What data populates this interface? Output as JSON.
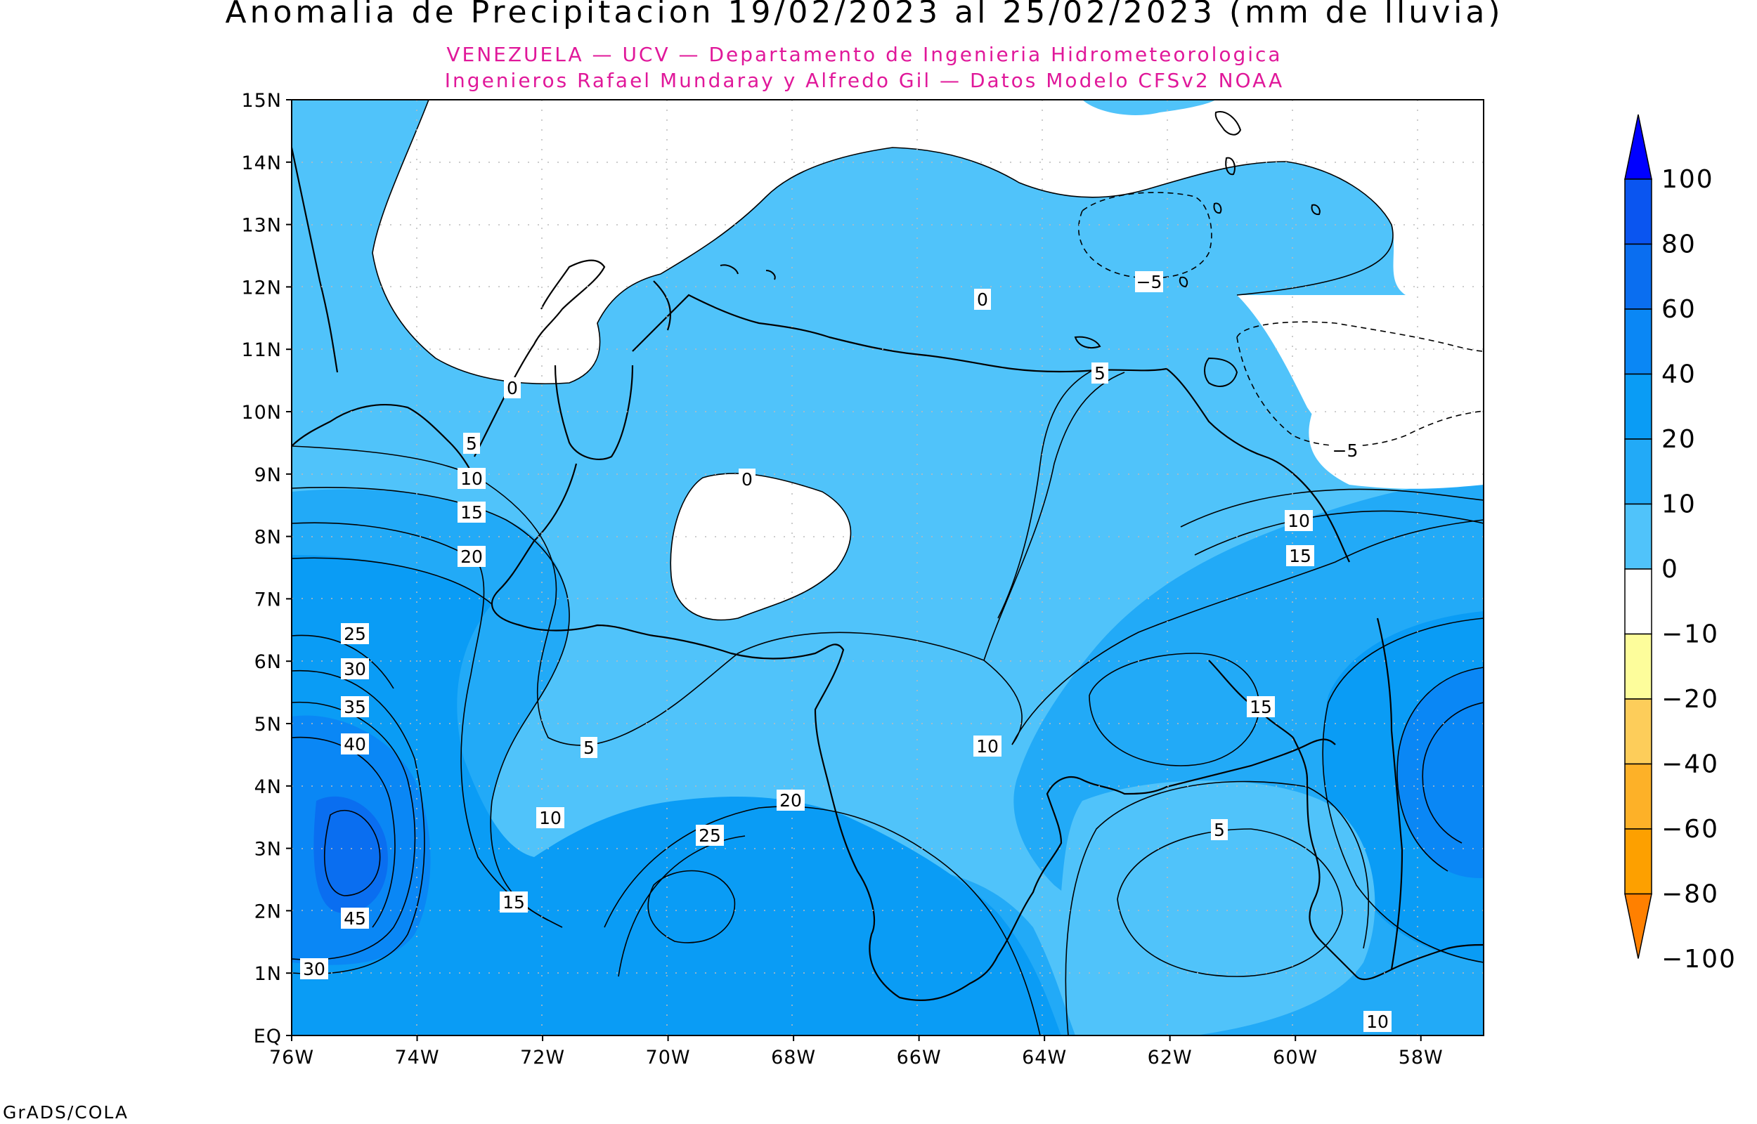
{
  "title": "Anomalia de Precipitacion 19/02/2023 al 25/02/2023 (mm de lluvia)",
  "subtitle_1": "VENEZUELA — UCV — Departamento de Ingenieria Hidrometeorologica",
  "subtitle_2": "Ingenieros Rafael Mundaray y Alfredo Gil — Datos Modelo CFSv2 NOAA",
  "credit": "GrADS/COLA",
  "axes": {
    "lon_ticks": [
      "76W",
      "74W",
      "72W",
      "70W",
      "68W",
      "66W",
      "64W",
      "62W",
      "60W",
      "58W"
    ],
    "lat_ticks": [
      "EQ",
      "1N",
      "2N",
      "3N",
      "4N",
      "5N",
      "6N",
      "7N",
      "8N",
      "9N",
      "10N",
      "11N",
      "12N",
      "13N",
      "14N",
      "15N"
    ],
    "lon_range": [
      -76,
      -57
    ],
    "lat_range": [
      0,
      15
    ]
  },
  "colorbar": {
    "levels": [
      "100",
      "80",
      "60",
      "40",
      "20",
      "10",
      "0",
      "−10",
      "−20",
      "−40",
      "−60",
      "−80",
      "−100"
    ],
    "colors_top_to_bottom": [
      "#0000ff",
      "#0a55f0",
      "#0a6ef0",
      "#0a87f5",
      "#0a9cf5",
      "#22aaf7",
      "#50c3fa",
      "#ffffff",
      "#fdfd9b",
      "#fdcd5a",
      "#fdb128",
      "#fda000",
      "#ff8000"
    ]
  },
  "contour_labels": [
    {
      "text": "0",
      "id": "c0-a"
    },
    {
      "text": "0",
      "id": "c0-b"
    },
    {
      "text": "0",
      "id": "c0-c"
    },
    {
      "text": "5",
      "id": "c5-a"
    },
    {
      "text": "5",
      "id": "c5-b"
    },
    {
      "text": "5",
      "id": "c5-c"
    },
    {
      "text": "5",
      "id": "c5-d"
    },
    {
      "text": "10",
      "id": "c10-a"
    },
    {
      "text": "10",
      "id": "c10-b"
    },
    {
      "text": "10",
      "id": "c10-c"
    },
    {
      "text": "10",
      "id": "c10-d"
    },
    {
      "text": "10",
      "id": "c10-e"
    },
    {
      "text": "15",
      "id": "c15-a"
    },
    {
      "text": "15",
      "id": "c15-b"
    },
    {
      "text": "15",
      "id": "c15-c"
    },
    {
      "text": "15",
      "id": "c15-d"
    },
    {
      "text": "20",
      "id": "c20-a"
    },
    {
      "text": "20",
      "id": "c20-b"
    },
    {
      "text": "25",
      "id": "c25-a"
    },
    {
      "text": "25",
      "id": "c25-b"
    },
    {
      "text": "30",
      "id": "c30-a"
    },
    {
      "text": "30",
      "id": "c30-b"
    },
    {
      "text": "35",
      "id": "c35-a"
    },
    {
      "text": "40",
      "id": "c40-a"
    },
    {
      "text": "45",
      "id": "c45-a"
    },
    {
      "text": "−5",
      "id": "cm5-a"
    },
    {
      "text": "−5",
      "id": "cm5-b"
    }
  ]
}
